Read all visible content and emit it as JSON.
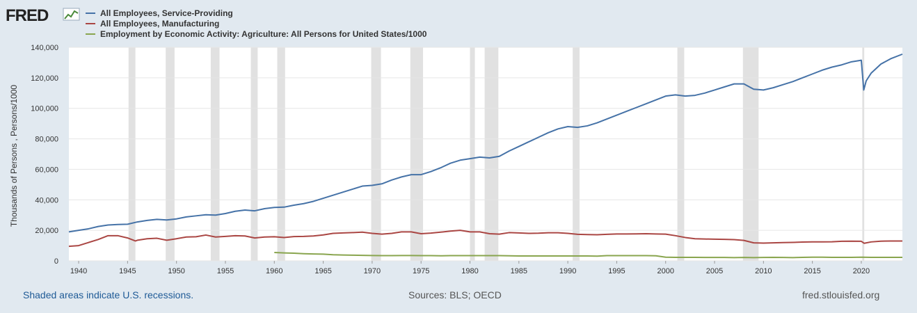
{
  "brand": {
    "logo_text": "FRED"
  },
  "legend": [
    {
      "label": "All Employees, Service-Providing",
      "color": "#4572a7"
    },
    {
      "label": "All Employees, Manufacturing",
      "color": "#aa4643"
    },
    {
      "label": "Employment by Economic Activity: Agriculture: All Persons for United States/1000",
      "color": "#89a54e"
    }
  ],
  "footer": {
    "note": "Shaded areas indicate U.S. recessions.",
    "sources": "Sources: BLS; OECD",
    "site": "fred.stlouisfed.org"
  },
  "chart_data": {
    "type": "line",
    "title": "",
    "xlabel": "",
    "ylabel": "Thousands of Persons , Persons/1000",
    "xlim": [
      1939,
      2024.2
    ],
    "ylim": [
      0,
      140000
    ],
    "x_ticks": [
      "1940",
      "1945",
      "1950",
      "1955",
      "1960",
      "1965",
      "1970",
      "1975",
      "1980",
      "1985",
      "1990",
      "1995",
      "2000",
      "2005",
      "2010",
      "2015",
      "2020"
    ],
    "y_ticks": [
      "0",
      "20,000",
      "40,000",
      "60,000",
      "80,000",
      "100,000",
      "120,000",
      "140,000"
    ],
    "grid": true,
    "legend_position": "top-left",
    "recessions": [
      [
        1945.1,
        1945.8
      ],
      [
        1948.9,
        1949.8
      ],
      [
        1953.5,
        1954.4
      ],
      [
        1957.6,
        1958.3
      ],
      [
        1960.3,
        1961.1
      ],
      [
        1969.9,
        1970.9
      ],
      [
        1973.9,
        1975.2
      ],
      [
        1980.0,
        1980.5
      ],
      [
        1981.5,
        1982.9
      ],
      [
        1990.5,
        1991.2
      ],
      [
        2001.2,
        2001.9
      ],
      [
        2007.9,
        2009.5
      ],
      [
        2020.1,
        2020.3
      ]
    ],
    "series": [
      {
        "name": "All Employees, Service-Providing",
        "color": "#4572a7",
        "points": [
          [
            1939,
            19000
          ],
          [
            1940,
            20000
          ],
          [
            1941,
            21000
          ],
          [
            1942,
            22500
          ],
          [
            1943,
            23500
          ],
          [
            1944,
            23800
          ],
          [
            1945,
            24000
          ],
          [
            1946,
            25500
          ],
          [
            1947,
            26500
          ],
          [
            1948,
            27200
          ],
          [
            1949,
            26800
          ],
          [
            1950,
            27500
          ],
          [
            1951,
            28800
          ],
          [
            1952,
            29500
          ],
          [
            1953,
            30200
          ],
          [
            1954,
            30000
          ],
          [
            1955,
            31000
          ],
          [
            1956,
            32500
          ],
          [
            1957,
            33300
          ],
          [
            1958,
            32800
          ],
          [
            1959,
            34200
          ],
          [
            1960,
            35000
          ],
          [
            1961,
            35200
          ],
          [
            1962,
            36500
          ],
          [
            1963,
            37500
          ],
          [
            1964,
            39000
          ],
          [
            1965,
            41000
          ],
          [
            1966,
            43000
          ],
          [
            1967,
            45000
          ],
          [
            1968,
            47000
          ],
          [
            1969,
            49000
          ],
          [
            1970,
            49500
          ],
          [
            1971,
            50500
          ],
          [
            1972,
            53000
          ],
          [
            1973,
            55000
          ],
          [
            1974,
            56500
          ],
          [
            1975,
            56500
          ],
          [
            1976,
            58500
          ],
          [
            1977,
            61000
          ],
          [
            1978,
            64000
          ],
          [
            1979,
            66000
          ],
          [
            1980,
            67000
          ],
          [
            1981,
            68000
          ],
          [
            1982,
            67500
          ],
          [
            1983,
            68500
          ],
          [
            1984,
            72000
          ],
          [
            1985,
            75000
          ],
          [
            1986,
            78000
          ],
          [
            1987,
            81000
          ],
          [
            1988,
            84000
          ],
          [
            1989,
            86500
          ],
          [
            1990,
            88000
          ],
          [
            1991,
            87500
          ],
          [
            1992,
            88500
          ],
          [
            1993,
            90500
          ],
          [
            1994,
            93000
          ],
          [
            1995,
            95500
          ],
          [
            1996,
            98000
          ],
          [
            1997,
            100500
          ],
          [
            1998,
            103000
          ],
          [
            1999,
            105500
          ],
          [
            2000,
            108000
          ],
          [
            2001,
            108800
          ],
          [
            2002,
            108000
          ],
          [
            2003,
            108500
          ],
          [
            2004,
            110000
          ],
          [
            2005,
            112000
          ],
          [
            2006,
            114000
          ],
          [
            2007,
            116000
          ],
          [
            2008,
            116000
          ],
          [
            2009,
            112500
          ],
          [
            2010,
            112000
          ],
          [
            2011,
            113500
          ],
          [
            2012,
            115500
          ],
          [
            2013,
            117500
          ],
          [
            2014,
            120000
          ],
          [
            2015,
            122500
          ],
          [
            2016,
            125000
          ],
          [
            2017,
            127000
          ],
          [
            2018,
            128500
          ],
          [
            2019,
            130500
          ],
          [
            2020.0,
            131500
          ],
          [
            2020.25,
            112000
          ],
          [
            2020.5,
            118000
          ],
          [
            2021,
            123000
          ],
          [
            2022,
            129000
          ],
          [
            2023,
            132500
          ],
          [
            2024.2,
            135500
          ]
        ]
      },
      {
        "name": "All Employees, Manufacturing",
        "color": "#aa4643",
        "points": [
          [
            1939,
            9500
          ],
          [
            1940,
            10000
          ],
          [
            1941,
            12000
          ],
          [
            1942,
            14000
          ],
          [
            1943,
            16500
          ],
          [
            1944,
            16500
          ],
          [
            1945,
            15000
          ],
          [
            1945.8,
            13000
          ],
          [
            1946,
            13500
          ],
          [
            1947,
            14500
          ],
          [
            1948,
            14800
          ],
          [
            1949,
            13500
          ],
          [
            1950,
            14500
          ],
          [
            1951,
            15600
          ],
          [
            1952,
            15800
          ],
          [
            1953,
            16900
          ],
          [
            1954,
            15600
          ],
          [
            1955,
            16000
          ],
          [
            1956,
            16500
          ],
          [
            1957,
            16300
          ],
          [
            1958,
            15000
          ],
          [
            1959,
            15600
          ],
          [
            1960,
            15800
          ],
          [
            1961,
            15300
          ],
          [
            1962,
            15900
          ],
          [
            1963,
            16000
          ],
          [
            1964,
            16300
          ],
          [
            1965,
            17000
          ],
          [
            1966,
            18000
          ],
          [
            1967,
            18300
          ],
          [
            1968,
            18500
          ],
          [
            1969,
            18800
          ],
          [
            1970,
            18000
          ],
          [
            1971,
            17500
          ],
          [
            1972,
            18000
          ],
          [
            1973,
            19000
          ],
          [
            1974,
            19000
          ],
          [
            1975,
            17800
          ],
          [
            1976,
            18200
          ],
          [
            1977,
            18800
          ],
          [
            1978,
            19500
          ],
          [
            1979,
            20000
          ],
          [
            1980,
            19000
          ],
          [
            1981,
            19000
          ],
          [
            1982,
            17800
          ],
          [
            1983,
            17500
          ],
          [
            1984,
            18500
          ],
          [
            1985,
            18300
          ],
          [
            1986,
            18000
          ],
          [
            1987,
            18100
          ],
          [
            1988,
            18400
          ],
          [
            1989,
            18400
          ],
          [
            1990,
            18000
          ],
          [
            1991,
            17400
          ],
          [
            1992,
            17200
          ],
          [
            1993,
            17100
          ],
          [
            1994,
            17400
          ],
          [
            1995,
            17600
          ],
          [
            1996,
            17600
          ],
          [
            1997,
            17700
          ],
          [
            1998,
            17800
          ],
          [
            1999,
            17600
          ],
          [
            2000,
            17500
          ],
          [
            2001,
            16500
          ],
          [
            2002,
            15300
          ],
          [
            2003,
            14500
          ],
          [
            2004,
            14300
          ],
          [
            2005,
            14200
          ],
          [
            2006,
            14100
          ],
          [
            2007,
            13900
          ],
          [
            2008,
            13400
          ],
          [
            2009,
            11800
          ],
          [
            2010,
            11600
          ],
          [
            2011,
            11800
          ],
          [
            2012,
            12000
          ],
          [
            2013,
            12100
          ],
          [
            2014,
            12300
          ],
          [
            2015,
            12400
          ],
          [
            2016,
            12400
          ],
          [
            2017,
            12500
          ],
          [
            2018,
            12800
          ],
          [
            2019,
            12900
          ],
          [
            2020.0,
            12800
          ],
          [
            2020.3,
            11500
          ],
          [
            2021,
            12400
          ],
          [
            2022,
            12900
          ],
          [
            2023,
            13000
          ],
          [
            2024.2,
            13000
          ]
        ]
      },
      {
        "name": "Employment by Economic Activity: Agriculture: All Persons for United States/1000",
        "color": "#89a54e",
        "points": [
          [
            1960,
            5500
          ],
          [
            1961,
            5200
          ],
          [
            1962,
            5000
          ],
          [
            1963,
            4700
          ],
          [
            1964,
            4500
          ],
          [
            1965,
            4400
          ],
          [
            1966,
            4000
          ],
          [
            1967,
            3800
          ],
          [
            1968,
            3700
          ],
          [
            1969,
            3600
          ],
          [
            1970,
            3500
          ],
          [
            1971,
            3400
          ],
          [
            1972,
            3400
          ],
          [
            1973,
            3500
          ],
          [
            1974,
            3500
          ],
          [
            1975,
            3400
          ],
          [
            1976,
            3400
          ],
          [
            1977,
            3300
          ],
          [
            1978,
            3400
          ],
          [
            1979,
            3400
          ],
          [
            1980,
            3400
          ],
          [
            1981,
            3400
          ],
          [
            1982,
            3400
          ],
          [
            1983,
            3400
          ],
          [
            1984,
            3300
          ],
          [
            1985,
            3200
          ],
          [
            1986,
            3200
          ],
          [
            1987,
            3200
          ],
          [
            1988,
            3200
          ],
          [
            1989,
            3200
          ],
          [
            1990,
            3200
          ],
          [
            1991,
            3200
          ],
          [
            1992,
            3200
          ],
          [
            1993,
            3100
          ],
          [
            1994,
            3400
          ],
          [
            1995,
            3400
          ],
          [
            1996,
            3400
          ],
          [
            1997,
            3400
          ],
          [
            1998,
            3400
          ],
          [
            1999,
            3300
          ],
          [
            2000,
            2400
          ],
          [
            2001,
            2300
          ],
          [
            2002,
            2300
          ],
          [
            2003,
            2300
          ],
          [
            2004,
            2200
          ],
          [
            2005,
            2200
          ],
          [
            2006,
            2200
          ],
          [
            2007,
            2100
          ],
          [
            2008,
            2200
          ],
          [
            2009,
            2100
          ],
          [
            2010,
            2200
          ],
          [
            2011,
            2300
          ],
          [
            2012,
            2200
          ],
          [
            2013,
            2100
          ],
          [
            2014,
            2300
          ],
          [
            2015,
            2400
          ],
          [
            2016,
            2400
          ],
          [
            2017,
            2300
          ],
          [
            2018,
            2300
          ],
          [
            2019,
            2300
          ],
          [
            2020,
            2400
          ],
          [
            2021,
            2300
          ],
          [
            2022,
            2300
          ],
          [
            2023,
            2300
          ],
          [
            2024.2,
            2300
          ]
        ]
      }
    ]
  }
}
